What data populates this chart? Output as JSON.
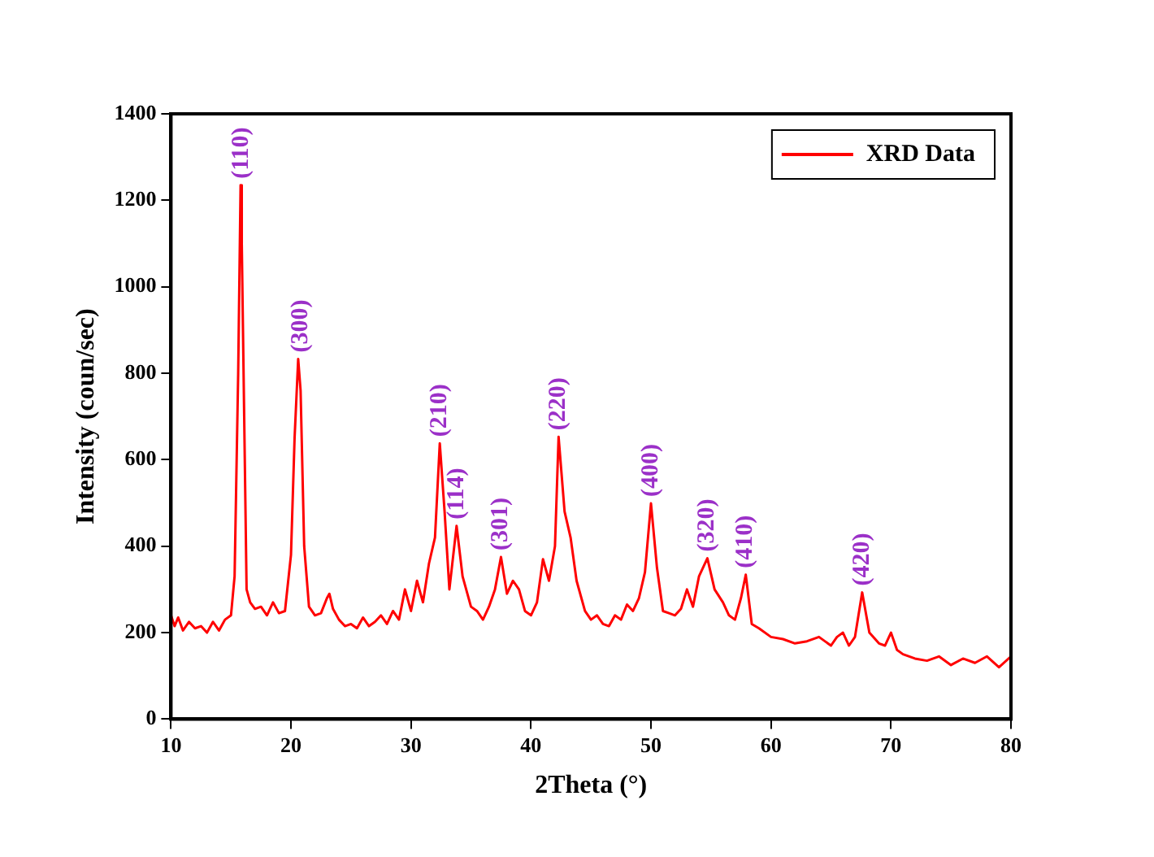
{
  "chart_data": {
    "type": "line",
    "xlabel": "2Theta (°)",
    "ylabel": "Intensity (coun/sec)",
    "xlim": [
      10,
      80
    ],
    "ylim": [
      0,
      1400
    ],
    "xticks": [
      10,
      20,
      30,
      40,
      50,
      60,
      70,
      80
    ],
    "yticks": [
      0,
      200,
      400,
      600,
      800,
      1000,
      1200,
      1400
    ],
    "grid": false,
    "legend": "top right",
    "marker": "none",
    "line_style": "solid",
    "series": [
      {
        "name": "XRD Data",
        "color": "#ff0000",
        "x": [
          10,
          10.3,
          10.6,
          11,
          11.5,
          12,
          12.5,
          13,
          13.5,
          14,
          14.5,
          15,
          15.3,
          15.6,
          15.8,
          15.9,
          16.1,
          16.3,
          16.6,
          17,
          17.5,
          18,
          18.5,
          19,
          19.5,
          20,
          20.3,
          20.6,
          20.8,
          21.1,
          21.5,
          22,
          22.5,
          23,
          23.2,
          23.5,
          24,
          24.5,
          25,
          25.5,
          26,
          26.5,
          27,
          27.5,
          28,
          28.5,
          29,
          29.5,
          30,
          30.5,
          31,
          31.5,
          32,
          32.4,
          32.8,
          33.2,
          33.8,
          34.3,
          35,
          35.5,
          36,
          36.5,
          37,
          37.5,
          38,
          38.5,
          39,
          39.5,
          40,
          40.5,
          41,
          41.5,
          42,
          42.3,
          42.8,
          43.3,
          43.8,
          44.5,
          45,
          45.5,
          46,
          46.5,
          47,
          47.5,
          48,
          48.5,
          49,
          49.5,
          50,
          50.5,
          51,
          51.5,
          52,
          52.5,
          53,
          53.5,
          54,
          54.7,
          55.3,
          56,
          56.5,
          57,
          57.5,
          57.9,
          58.4,
          59,
          60,
          61,
          62,
          63,
          64,
          65,
          65.5,
          66,
          66.5,
          67,
          67.6,
          68.2,
          69,
          69.5,
          70,
          70.5,
          71,
          72,
          73,
          74,
          75,
          76,
          77,
          78,
          79,
          80
        ],
        "values": [
          240,
          215,
          235,
          205,
          225,
          210,
          215,
          200,
          225,
          205,
          230,
          240,
          330,
          800,
          1235,
          1100,
          700,
          300,
          270,
          255,
          260,
          240,
          270,
          245,
          250,
          380,
          650,
          833,
          760,
          400,
          260,
          240,
          245,
          280,
          290,
          255,
          230,
          215,
          220,
          210,
          235,
          215,
          225,
          240,
          220,
          250,
          230,
          300,
          250,
          320,
          270,
          360,
          420,
          638,
          480,
          300,
          447,
          330,
          260,
          250,
          230,
          260,
          300,
          375,
          290,
          320,
          300,
          250,
          240,
          270,
          370,
          320,
          400,
          653,
          480,
          420,
          320,
          250,
          230,
          240,
          220,
          215,
          240,
          230,
          265,
          250,
          280,
          340,
          499,
          350,
          250,
          245,
          240,
          255,
          300,
          260,
          330,
          372,
          300,
          270,
          240,
          230,
          280,
          334,
          220,
          210,
          190,
          185,
          175,
          180,
          190,
          170,
          190,
          200,
          170,
          190,
          293,
          200,
          175,
          170,
          200,
          160,
          150,
          140,
          135,
          145,
          125,
          140,
          130,
          145,
          120,
          145
        ]
      }
    ],
    "annotations": [
      {
        "text": "(110)",
        "x": 15.9,
        "y": 1235
      },
      {
        "text": "(300)",
        "x": 20.8,
        "y": 833
      },
      {
        "text": "(210)",
        "x": 32.4,
        "y": 638
      },
      {
        "text": "(114)",
        "x": 33.8,
        "y": 447
      },
      {
        "text": "(301)",
        "x": 37.5,
        "y": 375
      },
      {
        "text": "(220)",
        "x": 42.3,
        "y": 653
      },
      {
        "text": "(400)",
        "x": 50,
        "y": 499
      },
      {
        "text": "(320)",
        "x": 54.7,
        "y": 372
      },
      {
        "text": "(410)",
        "x": 57.9,
        "y": 334
      },
      {
        "text": "(420)",
        "x": 67.6,
        "y": 293
      }
    ]
  }
}
